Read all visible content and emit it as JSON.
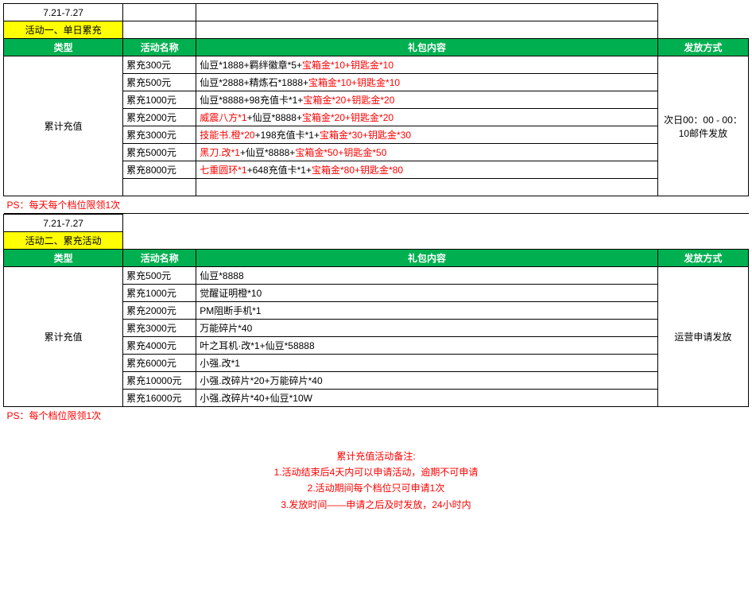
{
  "colors": {
    "headerBg": "#00b050",
    "headerFg": "#ffffff",
    "highlightBg": "#ffff00",
    "redText": "#ff0000",
    "border": "#000000"
  },
  "section1": {
    "dateRange": "7.21-7.27",
    "label": "活动一、单日累充",
    "headers": {
      "type": "类型",
      "name": "活动名称",
      "content": "礼包内容",
      "method": "发放方式"
    },
    "typeCell": "累计充值",
    "methodCell": "次日00：00 - 00：10邮件发放",
    "rows": [
      {
        "name": "累充300元",
        "parts": [
          {
            "t": "仙豆*1888+羁绊徽章*5+",
            "c": 0
          },
          {
            "t": "宝箱金*10+钥匙金*10",
            "c": 1
          }
        ]
      },
      {
        "name": "累充500元",
        "parts": [
          {
            "t": "仙豆*2888+精炼石*1888+",
            "c": 0
          },
          {
            "t": "宝箱金*10+钥匙金*10",
            "c": 1
          }
        ]
      },
      {
        "name": "累充1000元",
        "parts": [
          {
            "t": "仙豆*8888+98充值卡*1+",
            "c": 0
          },
          {
            "t": "宝箱金*20+钥匙金*20",
            "c": 1
          }
        ]
      },
      {
        "name": "累充2000元",
        "parts": [
          {
            "t": "威震八方*1",
            "c": 1
          },
          {
            "t": "+仙豆*8888+",
            "c": 0
          },
          {
            "t": "宝箱金*20+钥匙金*20",
            "c": 1
          }
        ]
      },
      {
        "name": "累充3000元",
        "parts": [
          {
            "t": "技能书.橙*20",
            "c": 1
          },
          {
            "t": "+198充值卡*1+",
            "c": 0
          },
          {
            "t": "宝箱金*30+钥匙金*30",
            "c": 1
          }
        ]
      },
      {
        "name": "累充5000元",
        "parts": [
          {
            "t": "黑刀.改*1",
            "c": 1
          },
          {
            "t": "+仙豆*8888+",
            "c": 0
          },
          {
            "t": "宝箱金*50+钥匙金*50",
            "c": 1
          }
        ]
      },
      {
        "name": "累充8000元",
        "parts": [
          {
            "t": "七重圆环*1",
            "c": 1
          },
          {
            "t": "+648充值卡*1+",
            "c": 0
          },
          {
            "t": "宝箱金*80+钥匙金*80",
            "c": 1
          }
        ]
      }
    ],
    "ps": "PS：每天每个档位限领1次"
  },
  "section2": {
    "dateRange": "7.21-7.27",
    "label": "活动二、累充活动",
    "headers": {
      "type": "类型",
      "name": "活动名称",
      "content": "礼包内容",
      "method": "发放方式"
    },
    "typeCell": "累计充值",
    "methodCell": "运营申请发放",
    "rows": [
      {
        "name": "累充500元",
        "content": "仙豆*8888"
      },
      {
        "name": "累充1000元",
        "content": "觉醒证明橙*10"
      },
      {
        "name": "累充2000元",
        "content": "PM阻断手机*1"
      },
      {
        "name": "累充3000元",
        "content": "万能碎片*40"
      },
      {
        "name": "累充4000元",
        "content": "叶之耳机·改*1+仙豆*58888"
      },
      {
        "name": "累充6000元",
        "content": "小强.改*1"
      },
      {
        "name": "累充10000元",
        "content": "小强.改碎片*20+万能碎片*40"
      },
      {
        "name": "累充16000元",
        "content": "小强.改碎片*40+仙豆*10W"
      }
    ],
    "ps": "PS：每个档位限领1次"
  },
  "notes": {
    "title": "累计充值活动备注:",
    "lines": [
      "1.活动结束后4天内可以申请活动，逾期不可申请",
      "2.活动期间每个档位只可申请1次",
      "3.发放时间——申请之后及时发放，24小时内"
    ]
  }
}
